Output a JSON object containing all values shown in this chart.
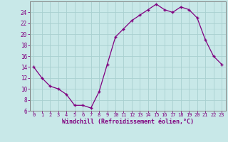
{
  "x": [
    0,
    1,
    2,
    3,
    4,
    5,
    6,
    7,
    8,
    9,
    10,
    11,
    12,
    13,
    14,
    15,
    16,
    17,
    18,
    19,
    20,
    21,
    22,
    23
  ],
  "y": [
    14,
    12,
    10.5,
    10,
    9,
    7,
    7,
    6.5,
    9.5,
    14.5,
    19.5,
    21,
    22.5,
    23.5,
    24.5,
    25.5,
    24.5,
    24,
    25,
    24.5,
    23,
    19,
    16,
    14.5
  ],
  "line_color": "#800080",
  "bg_color": "#c8e8e8",
  "grid_color": "#a8d0d0",
  "xlabel": "Windchill (Refroidissement éolien,°C)",
  "xlabel_color": "#800080",
  "tick_color": "#800080",
  "spine_color": "#808080",
  "ylim": [
    6,
    26
  ],
  "xlim": [
    -0.5,
    23.5
  ],
  "yticks": [
    6,
    8,
    10,
    12,
    14,
    16,
    18,
    20,
    22,
    24
  ],
  "xticks": [
    0,
    1,
    2,
    3,
    4,
    5,
    6,
    7,
    8,
    9,
    10,
    11,
    12,
    13,
    14,
    15,
    16,
    17,
    18,
    19,
    20,
    21,
    22,
    23
  ],
  "marker": "+"
}
